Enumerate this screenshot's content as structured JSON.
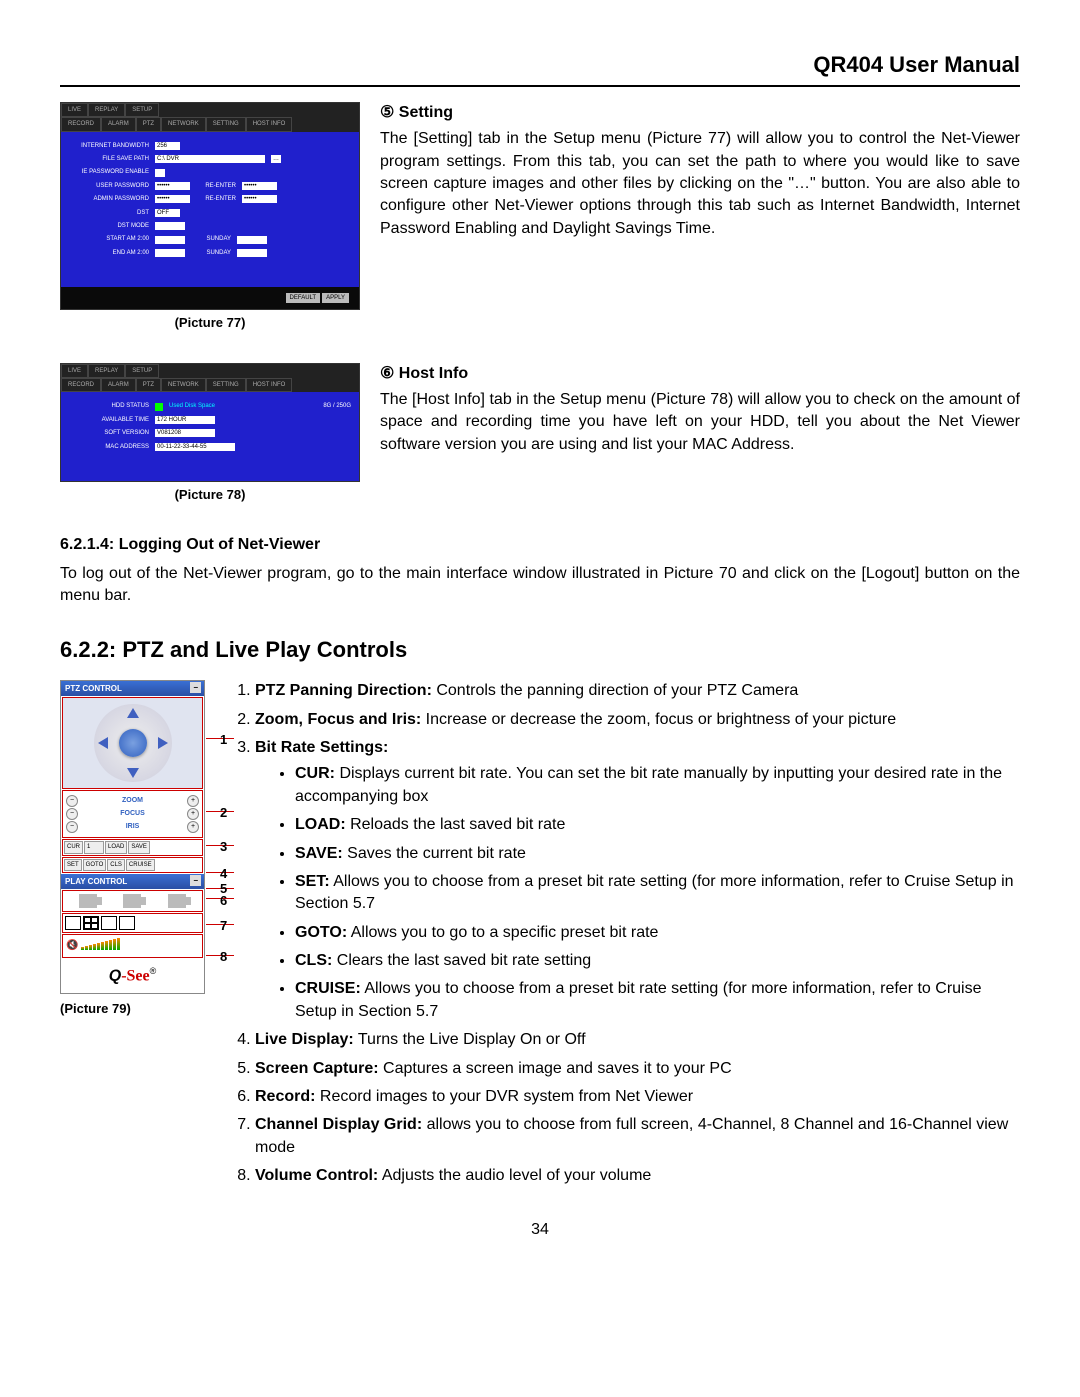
{
  "header": "QR404 User Manual",
  "s5": {
    "marker": "⑤",
    "title": "Setting",
    "body": "The [Setting] tab in the Setup menu (Picture 77) will allow you to control the Net-Viewer program settings. From this tab, you can set the path to where you would like to save screen capture images and other files by clicking on the \"…\" button. You are also able to configure other Net-Viewer options through this tab such as Internet Bandwidth, Internet Password Enabling and Daylight Savings Time.",
    "caption": "(Picture 77)"
  },
  "ss77": {
    "top_tabs": [
      "LIVE",
      "REPLAY",
      "SETUP"
    ],
    "sub_tabs": [
      "RECORD",
      "ALARM",
      "PTZ",
      "NETWORK",
      "SETTING",
      "HOST INFO"
    ],
    "rows": [
      {
        "l": "INTERNET BANDWIDTH",
        "v": "256"
      },
      {
        "l": "FILE SAVE PATH",
        "v": "C:\\ DVR"
      },
      {
        "l": "IE PASSWORD ENABLE",
        "v": ""
      },
      {
        "l": "USER PASSWORD",
        "v": "••••••",
        "l2": "RE-ENTER",
        "v2": "••••••"
      },
      {
        "l": "ADMIN PASSWORD",
        "v": "••••••",
        "l2": "RE-ENTER",
        "v2": "••••••"
      },
      {
        "l": "DST",
        "v": "OFF"
      },
      {
        "l": "DST MODE",
        "v": ""
      },
      {
        "l": "START  AM 2:00",
        "v": "",
        "l2": "SUNDAY",
        "v2": ""
      },
      {
        "l": "END    AM 2:00",
        "v": "",
        "l2": "SUNDAY",
        "v2": ""
      }
    ],
    "btn1": "DEFAULT",
    "btn2": "APPLY"
  },
  "s6": {
    "marker": "⑥",
    "title": "Host Info",
    "body": "The [Host Info] tab in the Setup menu (Picture 78) will allow you to check on the amount of space and recording time you have left on your HDD, tell you about the Net Viewer software version you are using and list your MAC Address.",
    "caption": "(Picture 78)"
  },
  "ss78": {
    "top_tabs": [
      "LIVE",
      "REPLAY",
      "SETUP"
    ],
    "sub_tabs": [
      "RECORD",
      "ALARM",
      "PTZ",
      "NETWORK",
      "SETTING",
      "HOST INFO"
    ],
    "rows": [
      {
        "l": "HDD STATUS",
        "v": "Used Disk Space",
        "r": "8G / 250G"
      },
      {
        "l": "AVAILABLE TIME",
        "v": "172 HOUR"
      },
      {
        "l": "SOFT VERSION",
        "v": "V081208"
      },
      {
        "l": "MAC ADDRESS",
        "v": "00-11-22-33-44-55"
      }
    ]
  },
  "logout": {
    "head": "6.2.1.4: Logging Out of Net-Viewer",
    "body": "To log out of the Net-Viewer program, go to the main interface window illustrated in Picture 70 and click on the [Logout] button on the menu bar."
  },
  "ptz": {
    "head": "6.2.2: PTZ and Live Play Controls",
    "caption": "(Picture 79)",
    "panel": {
      "ptz_title": "PTZ CONTROL",
      "zoom": "ZOOM",
      "focus": "FOCUS",
      "iris": "IRIS",
      "cur": "CUR",
      "cur_v": "1",
      "load": "LOAD",
      "save": "SAVE",
      "set": "SET",
      "goto": "GOTO",
      "cls": "CLS",
      "cruise": "CRUISE",
      "play_title": "PLAY CONTROL",
      "logo_q": "Q",
      "logo_see": "-See",
      "logo_r": "®"
    },
    "callouts": [
      "1",
      "2",
      "3",
      "4",
      "5",
      "6",
      "7",
      "8"
    ],
    "list": [
      {
        "n": "1.",
        "b": "PTZ Panning Direction:",
        "t": " Controls the panning direction of your PTZ Camera"
      },
      {
        "n": "2.",
        "b": "Zoom, Focus and Iris:",
        "t": "   Increase or decrease the zoom, focus or brightness of your picture"
      },
      {
        "n": "3.",
        "b": "Bit Rate Settings:",
        "t": "",
        "sub": [
          {
            "b": "CUR:",
            "t": " Displays current bit rate. You can set the bit rate manually by inputting your desired rate in the accompanying box"
          },
          {
            "b": "LOAD:",
            "t": " Reloads the last saved bit rate"
          },
          {
            "b": "SAVE:",
            "t": " Saves the current bit rate"
          },
          {
            "b": "SET:",
            "t": " Allows you to choose from a preset bit rate setting (for more information, refer to Cruise Setup in Section 5.7"
          },
          {
            "b": "GOTO:",
            "t": " Allows you to go to a specific preset bit rate"
          },
          {
            "b": "CLS:",
            "t": " Clears the last saved bit rate setting"
          },
          {
            "b": "CRUISE:",
            "t": " Allows you to choose from a preset bit rate setting (for more information, refer to Cruise Setup in Section 5.7"
          }
        ]
      },
      {
        "n": "4.",
        "b": "Live Display:",
        "t": " Turns the Live Display On or Off"
      },
      {
        "n": "5.",
        "b": "Screen Capture:",
        "t": " Captures a screen image and saves it to your PC"
      },
      {
        "n": "6.",
        "b": "Record:",
        "t": " Record images to your DVR system from Net Viewer"
      },
      {
        "n": "7.",
        "b": "Channel Display Grid:",
        "t": " allows you to choose from full screen, 4-Channel, 8 Channel and 16-Channel view mode"
      },
      {
        "n": "8.",
        "b": "Volume Control:",
        "t": " Adjusts the audio level of your volume"
      }
    ]
  },
  "page_num": "34",
  "colors": {
    "accent": "#c00",
    "blue": "#2020cc",
    "header_grad": "#3a6fd4"
  }
}
